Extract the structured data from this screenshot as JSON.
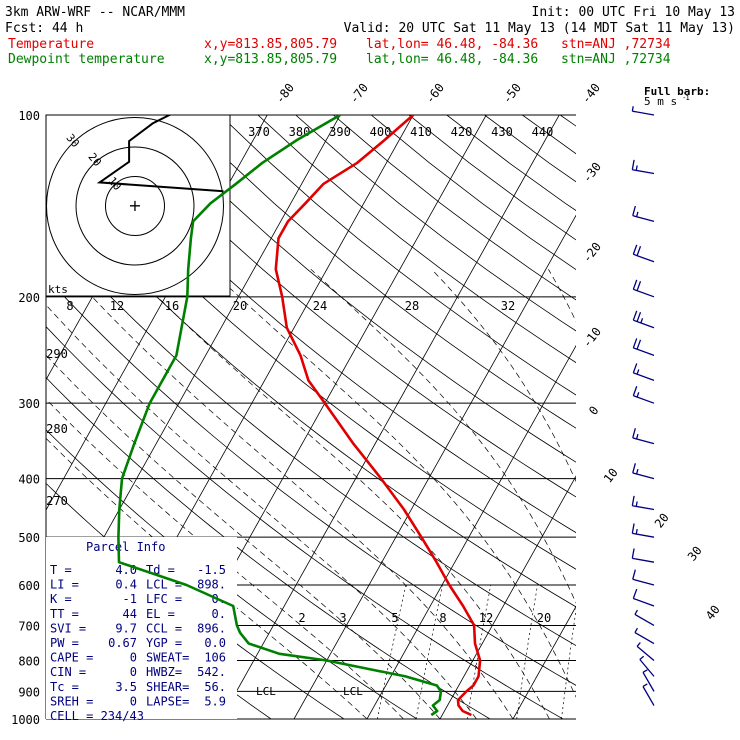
{
  "header": {
    "model": "3km ARW-WRF -- NCAR/MMM",
    "init": "Init: 00 UTC Fri 10 May 13",
    "fcst": "Fcst:    44 h",
    "valid": "Valid: 20 UTC Sat 11 May 13 (14 MDT Sat 11 May 13)",
    "temp_label": "Temperature",
    "dew_label": "Dewpoint temperature",
    "xy": "x,y=813.85,805.79",
    "latlon": "lat,lon= 46.48, -84.36",
    "stn": "stn=ANJ ,72734"
  },
  "barb_key": {
    "line1": "Full barb:",
    "line2": "5 m s",
    "sup": "-1"
  },
  "hodograph": {
    "units": "kts",
    "rings": [
      "10",
      "20",
      "30"
    ],
    "plus": "+"
  },
  "parcel": {
    "title": "Parcel Info",
    "rows": [
      {
        "l": "T   =",
        "lv": "4.0",
        "r": "Td  =",
        "rv": "-1.5"
      },
      {
        "l": "LI  =",
        "lv": "0.4",
        "r": "LCL =",
        "rv": "898."
      },
      {
        "l": "K   =",
        "lv": "-1",
        "r": "LFC =",
        "rv": "0."
      },
      {
        "l": "TT  =",
        "lv": "44",
        "r": "EL  =",
        "rv": "0."
      },
      {
        "l": "SVI =",
        "lv": "9.7",
        "r": "CCL =",
        "rv": "896."
      },
      {
        "l": "PW  =",
        "lv": "0.67",
        "r": "YGP =",
        "rv": "0.0"
      },
      {
        "l": "CAPE =",
        "lv": "0",
        "r": "SWEAT=",
        "rv": "106"
      },
      {
        "l": "CIN  =",
        "lv": "0",
        "r": "HWBZ=",
        "rv": "542."
      },
      {
        "l": "Tc   =",
        "lv": "3.5",
        "r": "SHEAR=",
        "rv": "56."
      },
      {
        "l": "SREH =",
        "lv": "0",
        "r": "LAPSE=",
        "rv": "5.9"
      }
    ],
    "cell": "CELL = 234/43"
  },
  "lcl_labels": {
    "left": "LCL",
    "right": "LCL"
  },
  "colors": {
    "temperature": "#e00000",
    "dewpoint": "#008000",
    "panel": "#000080",
    "barb": "#000080",
    "grid": "#000000"
  },
  "chart_data": {
    "type": "line",
    "title": "",
    "y_axis": {
      "label": "",
      "scale": "log",
      "ylim": [
        1000,
        100
      ],
      "ticks": [
        "100",
        "200",
        "300",
        "400",
        "500",
        "600",
        "700",
        "800",
        "900",
        "1000"
      ]
    },
    "isotherm_labels": [
      "-80",
      "-70",
      "-60",
      "-50",
      "-40",
      "-30",
      "-20",
      "-10",
      "0",
      "10",
      "20",
      "30",
      "40"
    ],
    "theta_e_labels": [
      "370",
      "380",
      "390",
      "400",
      "410",
      "420",
      "430",
      "440"
    ],
    "mixing_labels_top": [
      "8",
      "12",
      "16",
      "20",
      "24",
      "28",
      "32"
    ],
    "mixing_labels_bottom": [
      "2",
      "3",
      "5",
      "8",
      "12",
      "20"
    ],
    "theta_labels_left": [
      "290",
      "280",
      "270"
    ],
    "series": [
      {
        "name": "Temperature",
        "color": "#e00000",
        "p": [
          985,
          970,
          950,
          930,
          900,
          880,
          850,
          800,
          750,
          700,
          650,
          600,
          550,
          500,
          450,
          400,
          350,
          300,
          275,
          250,
          225,
          200,
          180,
          160,
          150,
          140,
          130,
          120,
          110,
          100
        ],
        "t": [
          4.0,
          2.5,
          1.5,
          1.0,
          1.5,
          2.0,
          2.0,
          1.0,
          -1.0,
          -2.5,
          -5.5,
          -9,
          -12.5,
          -16.5,
          -21,
          -26.5,
          -33,
          -40,
          -44,
          -47,
          -51,
          -54,
          -57,
          -59,
          -59,
          -58,
          -57,
          -54,
          -52,
          -50
        ]
      },
      {
        "name": "Dewpoint temperature",
        "color": "#008000",
        "p": [
          985,
          970,
          950,
          930,
          900,
          880,
          850,
          800,
          780,
          750,
          720,
          700,
          650,
          600,
          550,
          500,
          450,
          400,
          350,
          300,
          250,
          200,
          180,
          160,
          150,
          140,
          130,
          120,
          110,
          100
        ],
        "t": [
          -1.5,
          -1.0,
          -2.0,
          -1.5,
          -2.0,
          -3.0,
          -8.0,
          -20,
          -27,
          -32,
          -34,
          -35,
          -37,
          -45,
          -56,
          -58,
          -60,
          -62,
          -63,
          -64,
          -64,
          -67,
          -69,
          -71,
          -72,
          -71,
          -69,
          -67,
          -64,
          -60
        ]
      }
    ],
    "hodograph_trace_kts": [
      [
        30,
        5
      ],
      [
        -12,
        8
      ],
      [
        -2,
        15
      ],
      [
        -2,
        22
      ],
      [
        6,
        28
      ],
      [
        12,
        31
      ],
      [
        13,
        33
      ]
    ],
    "wind_barbs": [
      {
        "p": 100,
        "dir": 280,
        "spd": 5
      },
      {
        "p": 125,
        "dir": 280,
        "spd": 15
      },
      {
        "p": 150,
        "dir": 285,
        "spd": 15
      },
      {
        "p": 175,
        "dir": 290,
        "spd": 20
      },
      {
        "p": 200,
        "dir": 290,
        "spd": 20
      },
      {
        "p": 225,
        "dir": 290,
        "spd": 25
      },
      {
        "p": 250,
        "dir": 290,
        "spd": 20
      },
      {
        "p": 275,
        "dir": 290,
        "spd": 15
      },
      {
        "p": 300,
        "dir": 290,
        "spd": 15
      },
      {
        "p": 350,
        "dir": 285,
        "spd": 15
      },
      {
        "p": 400,
        "dir": 285,
        "spd": 15
      },
      {
        "p": 450,
        "dir": 280,
        "spd": 15
      },
      {
        "p": 500,
        "dir": 280,
        "spd": 15
      },
      {
        "p": 550,
        "dir": 280,
        "spd": 10
      },
      {
        "p": 600,
        "dir": 285,
        "spd": 10
      },
      {
        "p": 650,
        "dir": 290,
        "spd": 10
      },
      {
        "p": 700,
        "dir": 300,
        "spd": 5
      },
      {
        "p": 750,
        "dir": 300,
        "spd": 5
      },
      {
        "p": 800,
        "dir": 310,
        "spd": 5
      },
      {
        "p": 850,
        "dir": 320,
        "spd": 5
      },
      {
        "p": 900,
        "dir": 330,
        "spd": 5
      },
      {
        "p": 950,
        "dir": 330,
        "spd": 5
      }
    ]
  }
}
